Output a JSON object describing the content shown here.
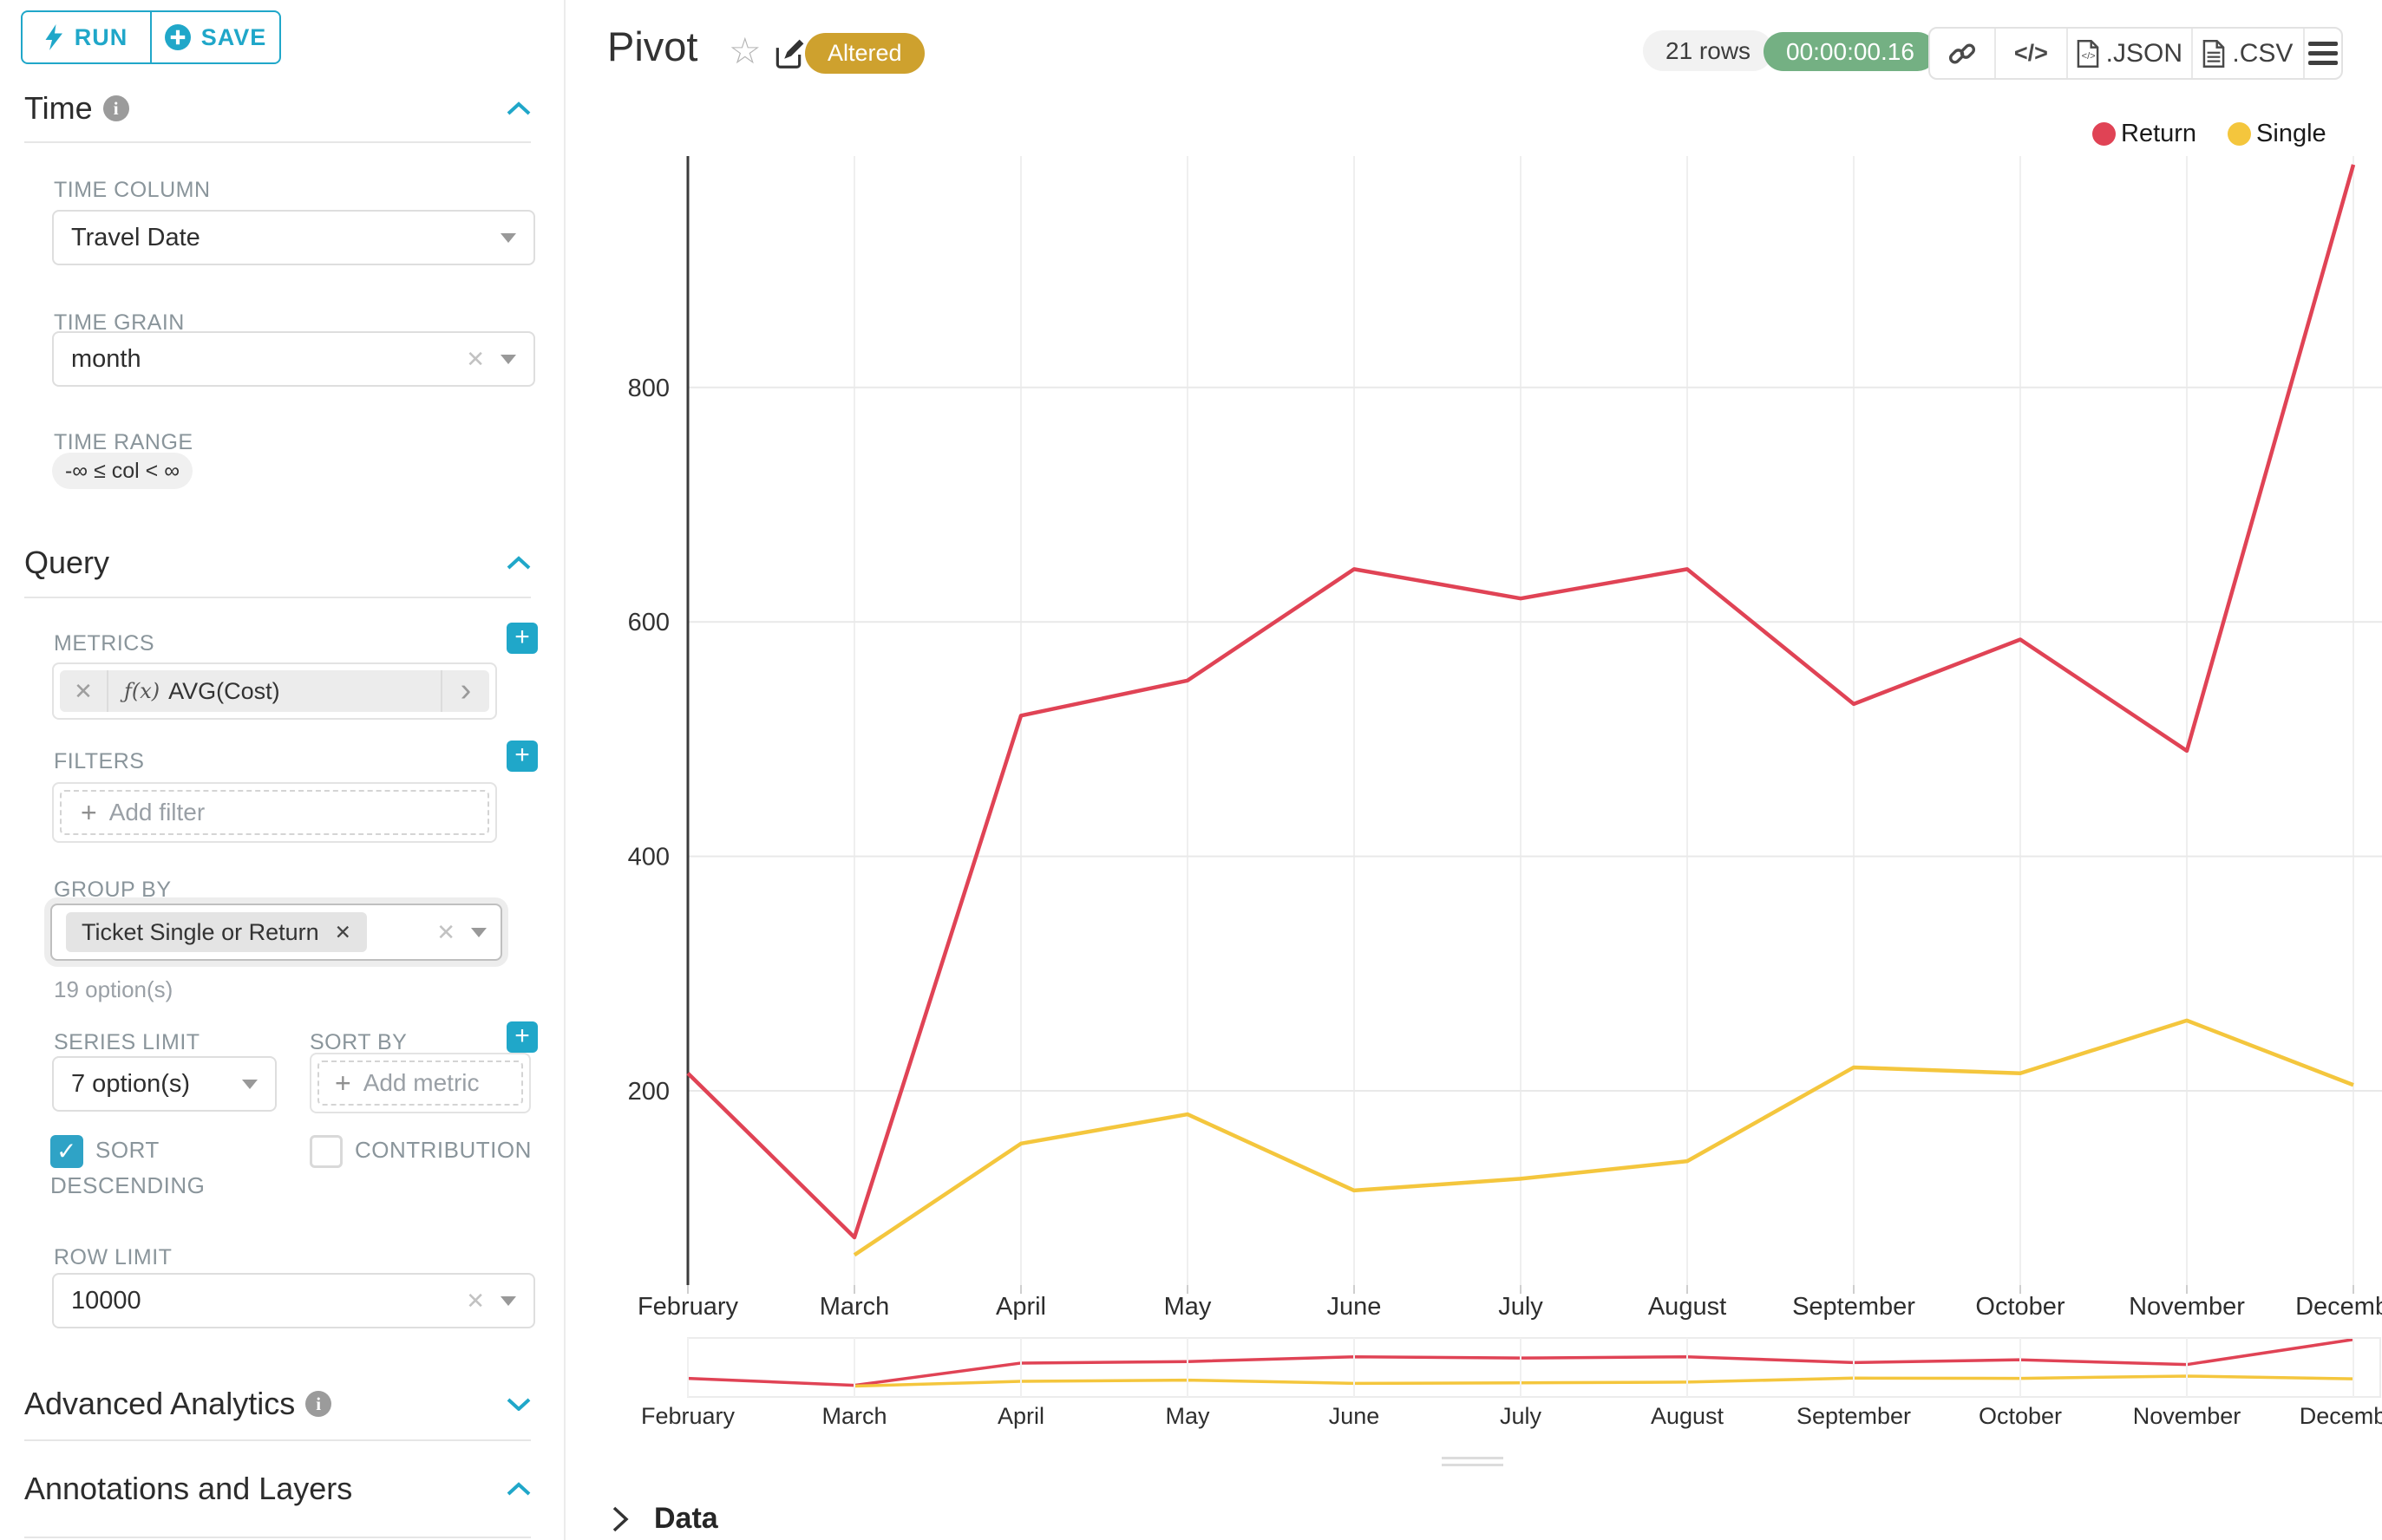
{
  "sidebar": {
    "run_label": "RUN",
    "save_label": "SAVE",
    "time_section": "Time",
    "query_section": "Query",
    "advanced_section": "Advanced Analytics",
    "annotations_section": "Annotations and Layers",
    "time_column": {
      "label": "TIME COLUMN",
      "value": "Travel Date"
    },
    "time_grain": {
      "label": "TIME GRAIN",
      "value": "month"
    },
    "time_range": {
      "label": "TIME RANGE",
      "value": "-∞ ≤ col < ∞"
    },
    "metrics": {
      "label": "METRICS",
      "fx": "ƒ(x)",
      "value": "AVG(Cost)"
    },
    "filters": {
      "label": "FILTERS",
      "placeholder": "Add filter"
    },
    "group_by": {
      "label": "GROUP BY",
      "value": "Ticket Single or Return",
      "options_hint": "19 option(s)"
    },
    "series_limit": {
      "label": "SERIES LIMIT",
      "value": "7 option(s)"
    },
    "sort_by": {
      "label": "SORT BY",
      "placeholder": "Add metric"
    },
    "sort_descending": {
      "label": "SORT DESCENDING",
      "checked": true
    },
    "contribution": {
      "label": "CONTRIBUTION",
      "checked": false
    },
    "row_limit": {
      "label": "ROW LIMIT",
      "value": "10000"
    }
  },
  "header": {
    "title": "Pivot",
    "altered_badge": "Altered",
    "rows_badge": "21 rows",
    "timer_badge": "00:00:00.16",
    "export_json": ".JSON",
    "export_csv": ".CSV",
    "code_glyph": "</>"
  },
  "data_panel": {
    "label": "Data"
  },
  "colors": {
    "accent": "#20A7C9",
    "altered_badge": "#CEA12E",
    "timer_badge": "#74B083",
    "return_line": "#E04355",
    "single_line": "#F4C63D",
    "gridline": "#ececec",
    "axis_line": "#3b3b3b"
  },
  "chart_data": {
    "type": "line",
    "title": "Pivot",
    "x": [
      "February",
      "March",
      "April",
      "May",
      "June",
      "July",
      "August",
      "September",
      "October",
      "November",
      "December"
    ],
    "series": [
      {
        "name": "Return",
        "color": "#E04355",
        "values": [
          215,
          75,
          520,
          550,
          645,
          620,
          645,
          530,
          585,
          490,
          990
        ]
      },
      {
        "name": "Single",
        "color": "#F4C63D",
        "values": [
          null,
          60,
          155,
          180,
          115,
          125,
          140,
          220,
          215,
          260,
          205
        ]
      }
    ],
    "y_ticks": [
      200,
      400,
      600,
      800
    ],
    "ylim": [
      0,
      1000
    ],
    "grid": true,
    "legend_position": "top-right",
    "range_selector": true
  }
}
